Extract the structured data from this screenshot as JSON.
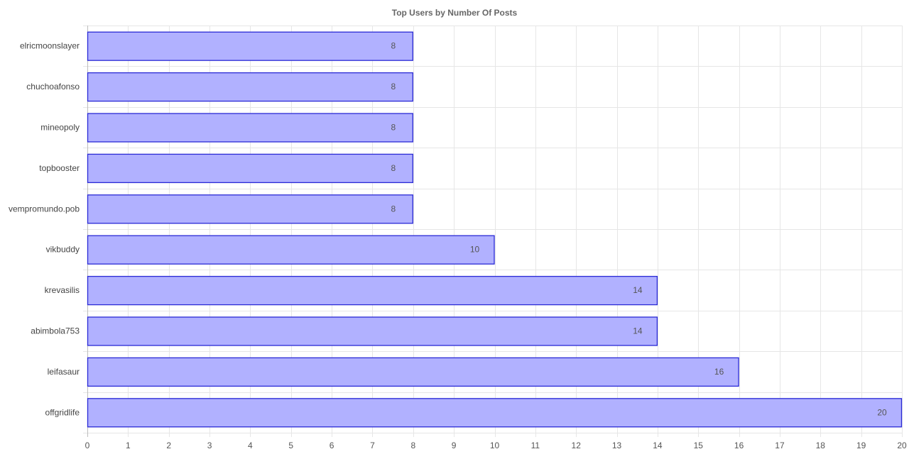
{
  "chart_data": {
    "type": "bar",
    "orientation": "horizontal",
    "title": "Top Users by Number Of Posts",
    "xlabel": "",
    "ylabel": "",
    "categories": [
      "elricmoonslayer",
      "chuchoafonso",
      "mineopoly",
      "topbooster",
      "vempromundo.pob",
      "vikbuddy",
      "krevasilis",
      "abimbola753",
      "leifasaur",
      "offgridlife"
    ],
    "values": [
      8,
      8,
      8,
      8,
      8,
      10,
      14,
      14,
      16,
      20
    ],
    "xlim": [
      0,
      20
    ],
    "ticks": [
      "0",
      "1",
      "2",
      "3",
      "4",
      "5",
      "6",
      "7",
      "8",
      "9",
      "10",
      "11",
      "12",
      "13",
      "14",
      "15",
      "16",
      "17",
      "18",
      "19",
      "20"
    ],
    "grid": true,
    "legend": "none",
    "colors": {
      "bar_fill": "#b1b1ff",
      "bar_stroke": "#2a2ad6"
    }
  }
}
